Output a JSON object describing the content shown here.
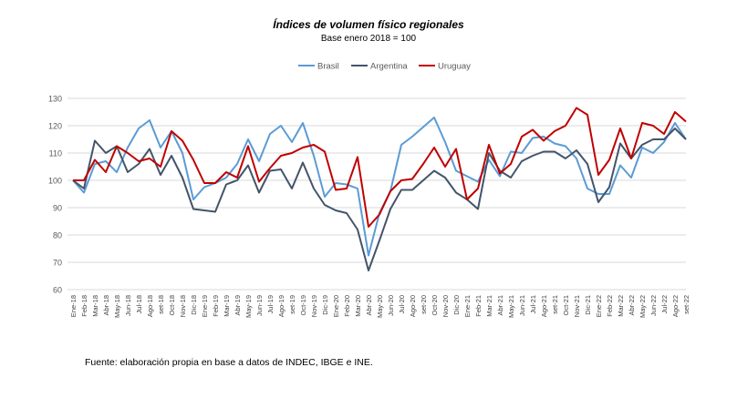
{
  "chart_data": {
    "type": "line",
    "title": "Índices de volumen físico regionales",
    "subtitle": "Base enero 2018 = 100",
    "xlabel": "",
    "ylabel": "",
    "ylim": [
      60,
      130
    ],
    "yticks": [
      60,
      70,
      80,
      90,
      100,
      110,
      120,
      130
    ],
    "grid": true,
    "legend_position": "top-center",
    "categories": [
      "Ene-18",
      "Feb-18",
      "Mar-18",
      "Abr-18",
      "May-18",
      "Jun-18",
      "Jul-18",
      "Ago-18",
      "set-18",
      "Oct-18",
      "Nov-18",
      "Dic-18",
      "Ene-19",
      "Feb-19",
      "Mar-19",
      "Abr-19",
      "May-19",
      "Jun-19",
      "Jul-19",
      "Ago-19",
      "set-19",
      "Oct-19",
      "Nov-19",
      "Dic-19",
      "Ene-20",
      "Feb-20",
      "Mar-20",
      "Abr-20",
      "May-20",
      "Jun-20",
      "Jul-20",
      "Ago-20",
      "set-20",
      "Oct-20",
      "Nov-20",
      "Dic-20",
      "Ene-21",
      "Feb-21",
      "Mar-21",
      "Abr-21",
      "May-21",
      "Jun-21",
      "Jul-21",
      "Ago-21",
      "set-21",
      "Oct-21",
      "Nov-21",
      "Dic-21",
      "Ene-22",
      "Feb-22",
      "Mar-22",
      "Abr-22",
      "May-22",
      "Jun-22",
      "Jul-22",
      "Ago-22",
      "set-22"
    ],
    "series": [
      {
        "name": "Brasil",
        "color": "#5b9bd5",
        "values": [
          100,
          95.5,
          106,
          107,
          103,
          112,
          119,
          122,
          112,
          118,
          110,
          93,
          97.5,
          99,
          101,
          106,
          115,
          107,
          117,
          120,
          114,
          121,
          109,
          94,
          99,
          98.5,
          97,
          72.5,
          88,
          96,
          113,
          116,
          119.5,
          123,
          114,
          103.5,
          101.5,
          99.5,
          107.5,
          101.5,
          110.5,
          110,
          115.5,
          116,
          113.5,
          112.5,
          108,
          97,
          95,
          95,
          105.5,
          101,
          112,
          110,
          114,
          121,
          115
        ]
      },
      {
        "name": "Argentina",
        "color": "#44546a",
        "values": [
          100,
          97,
          114.5,
          110,
          112.5,
          103,
          106,
          111.5,
          102,
          109,
          101,
          89.5,
          89,
          88.5,
          98.5,
          100,
          105.5,
          95.5,
          103.5,
          104,
          97,
          106.5,
          97,
          91,
          89,
          88,
          82,
          67,
          78,
          89.5,
          96.5,
          96.5,
          100,
          103.5,
          101,
          95.5,
          93,
          89.5,
          110,
          103.5,
          101,
          107,
          109,
          110.5,
          110.5,
          108,
          111,
          106,
          92,
          97.5,
          113.5,
          108,
          113,
          115,
          115,
          119,
          115
        ]
      },
      {
        "name": "Uruguay",
        "color": "#c00000",
        "values": [
          100,
          100,
          107.5,
          103,
          112.5,
          110,
          107,
          108,
          105,
          118,
          114.5,
          107.5,
          99,
          99,
          103,
          101,
          112.5,
          99.5,
          104.5,
          109,
          110,
          112,
          113,
          110.5,
          96.5,
          97,
          108.5,
          83,
          87.5,
          96,
          100,
          100.5,
          106,
          112,
          105,
          111.5,
          93,
          97,
          113,
          102.5,
          106,
          116,
          118.5,
          114.5,
          118,
          120,
          126.5,
          124,
          102,
          107.5,
          119,
          108,
          121,
          120,
          117,
          125,
          121.5
        ]
      }
    ]
  },
  "source": "Fuente: elaboración propia en base a datos de INDEC, IBGE e INE."
}
